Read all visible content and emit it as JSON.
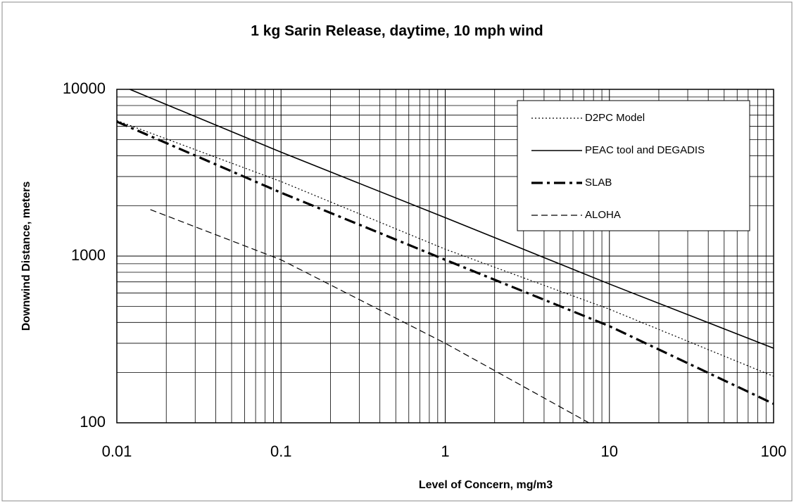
{
  "chart_data": {
    "type": "line",
    "title": "1 kg Sarin Release, daytime, 10 mph wind",
    "x_label": "Level of Concern, mg/m3",
    "y_label": "Downwind Distance, meters",
    "xlog": true,
    "ylog": true,
    "grid": true,
    "xlim": [
      0.01,
      100
    ],
    "ylim": [
      100,
      10000
    ],
    "xticks": [
      0.01,
      0.1,
      1,
      10,
      100
    ],
    "yticks": [
      100,
      1000,
      10000
    ],
    "legend": "upper right",
    "series": [
      {
        "name": "D2PC Model",
        "color": "#000000",
        "style": "dotted",
        "x": [
          0.01,
          0.1,
          1,
          10,
          100
        ],
        "values": [
          6500,
          2800,
          1100,
          480,
          190
        ]
      },
      {
        "name": "PEAC tool and DEGADIS",
        "color": "#000000",
        "style": "solid",
        "x": [
          0.012,
          0.1,
          1,
          10,
          100
        ],
        "values": [
          10000,
          4200,
          1700,
          680,
          280
        ]
      },
      {
        "name": "SLAB",
        "color": "#000000",
        "style": "dashdot",
        "x": [
          0.01,
          0.1,
          1,
          10,
          100
        ],
        "values": [
          6400,
          2400,
          950,
          380,
          130
        ]
      },
      {
        "name": "ALOHA",
        "color": "#000000",
        "style": "dashed",
        "x": [
          0.016,
          0.1,
          1,
          7.5
        ],
        "values": [
          1900,
          950,
          300,
          100
        ]
      }
    ]
  }
}
